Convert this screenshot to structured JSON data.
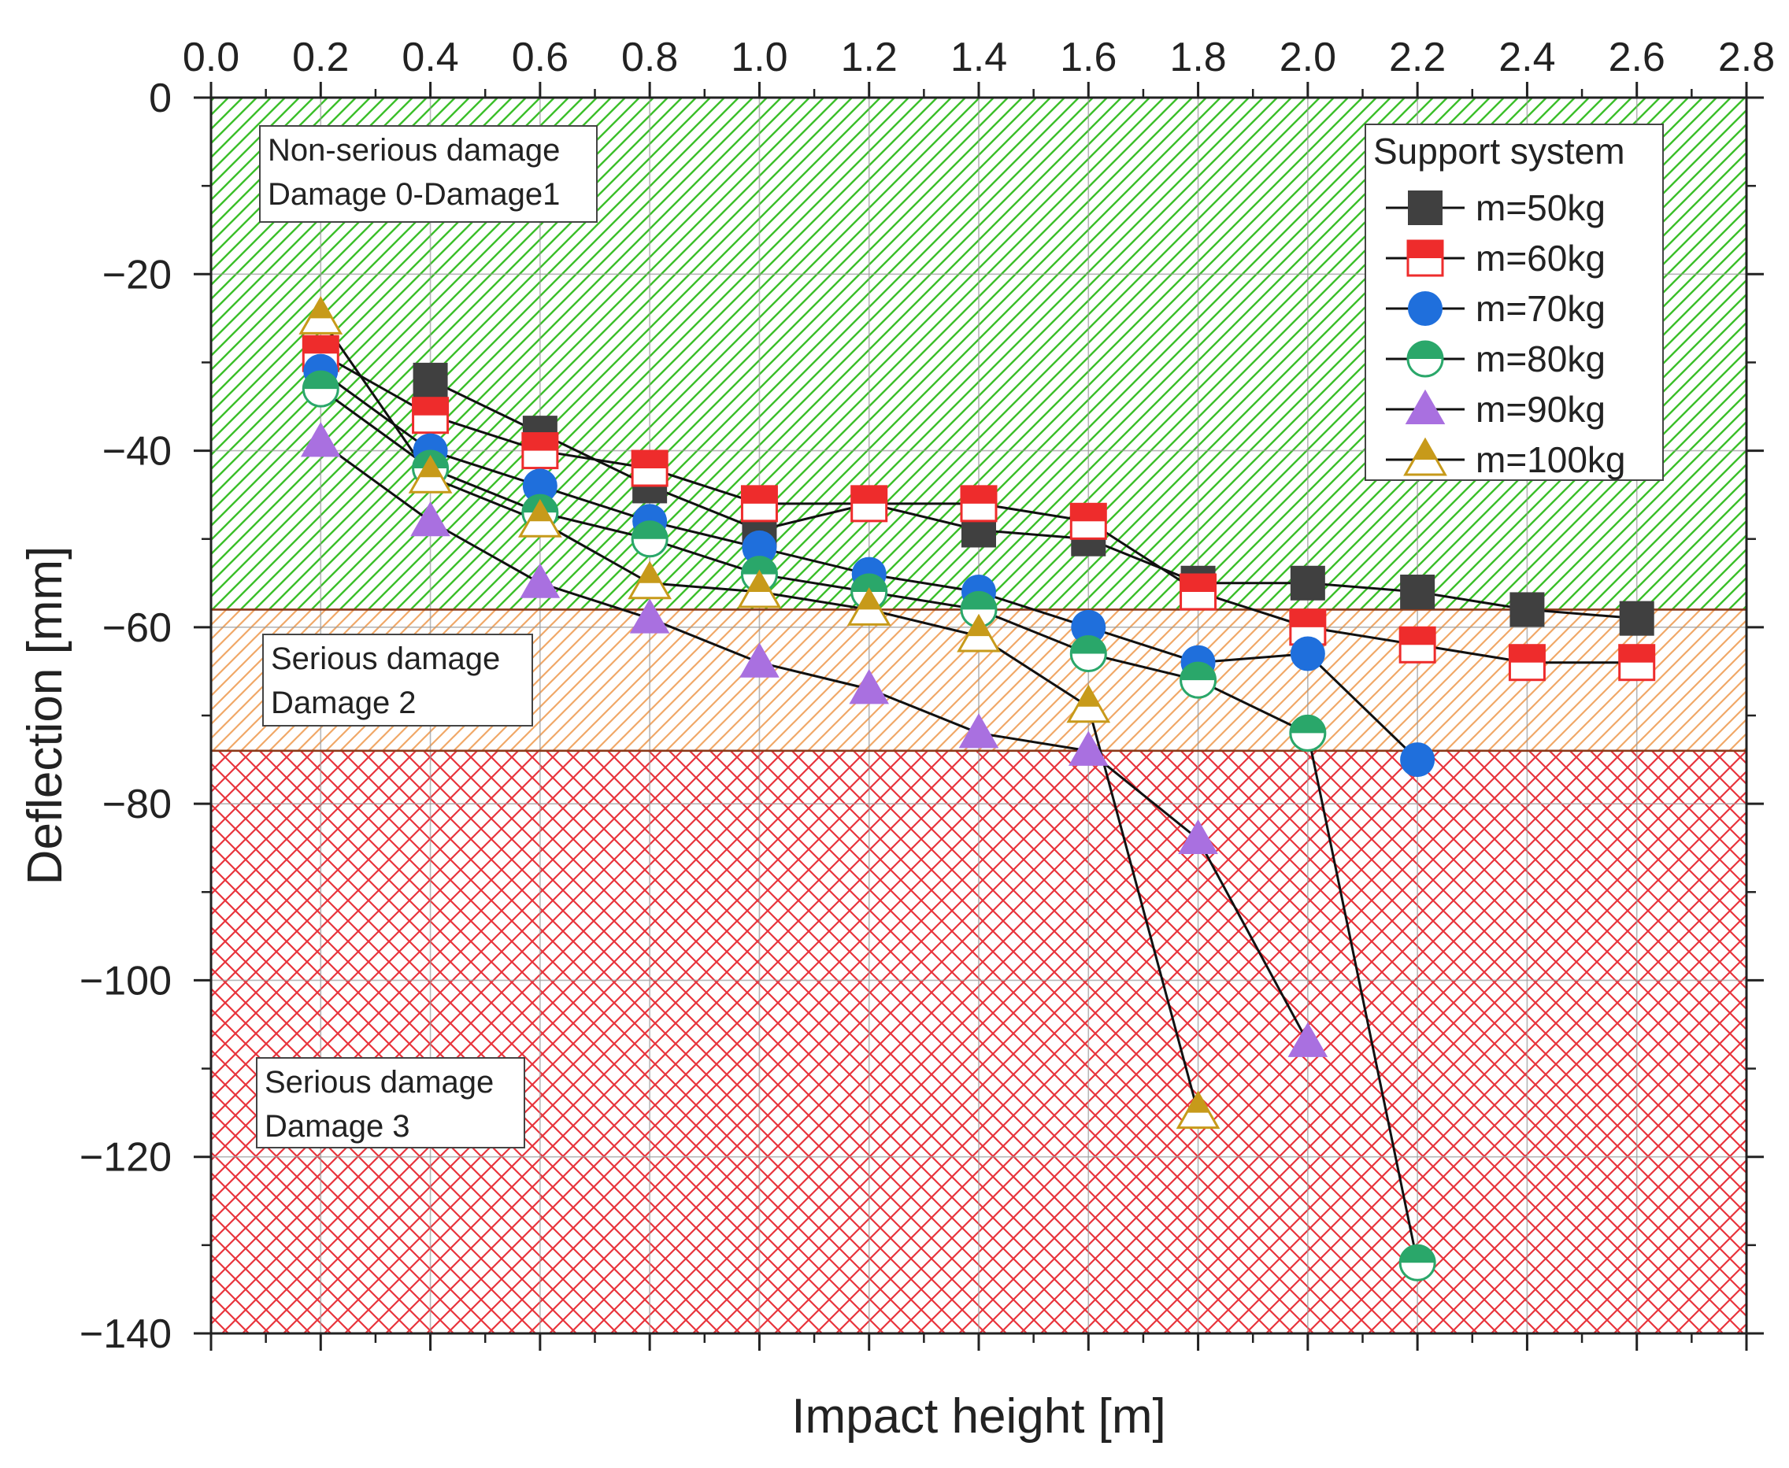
{
  "chart_data": {
    "type": "line",
    "title": "",
    "xlabel": "Impact height [m]",
    "ylabel": "Deflection [mm]",
    "xlim": [
      0.0,
      2.8
    ],
    "ylim": [
      -140,
      0
    ],
    "xticks": [
      "0.0",
      "0.2",
      "0.4",
      "0.6",
      "0.8",
      "1.0",
      "1.2",
      "1.4",
      "1.6",
      "1.8",
      "2.0",
      "2.2",
      "2.4",
      "2.6",
      "2.8"
    ],
    "yticks": [
      "0",
      "-20",
      "-40",
      "-60",
      "-80",
      "-100",
      "-120",
      "-140"
    ],
    "grid": true,
    "legend": {
      "title": "Support system",
      "position": "top-right"
    },
    "zones": [
      {
        "name": "green",
        "from": 0,
        "to": -58,
        "color": "#3bbf2a",
        "labels": [
          "Non-serious damage",
          "Damage 0-Damage1"
        ]
      },
      {
        "name": "orange",
        "from": -58,
        "to": -74,
        "color": "#f0a868",
        "labels": [
          "Serious damage",
          "Damage 2"
        ]
      },
      {
        "name": "red",
        "from": -74,
        "to": -140,
        "color": "#e8343c",
        "labels": [
          "Serious damage",
          "Damage 3"
        ]
      }
    ],
    "series": [
      {
        "name": "m=50kg",
        "marker": "square",
        "color": "#404040",
        "x": [
          0.4,
          0.6,
          0.8,
          1.0,
          1.2,
          1.4,
          1.6,
          1.8,
          2.0,
          2.2,
          2.4,
          2.6
        ],
        "y": [
          -32,
          -38,
          -44,
          -49,
          -46,
          -49,
          -50,
          -55,
          -55,
          -56,
          -58,
          -59
        ]
      },
      {
        "name": "m=60kg",
        "marker": "square-half",
        "color": "#ee2c2c",
        "x": [
          0.2,
          0.4,
          0.6,
          0.8,
          1.0,
          1.2,
          1.4,
          1.6,
          1.8,
          2.0,
          2.2,
          2.4,
          2.6
        ],
        "y": [
          -29,
          -36,
          -40,
          -42,
          -46,
          -46,
          -46,
          -48,
          -56,
          -60,
          -62,
          -64,
          -64
        ]
      },
      {
        "name": "m=70kg",
        "marker": "circle",
        "color": "#1f6fdc",
        "x": [
          0.2,
          0.4,
          0.6,
          0.8,
          1.0,
          1.2,
          1.4,
          1.6,
          1.8,
          2.0,
          2.2
        ],
        "y": [
          -31,
          -40,
          -44,
          -48,
          -51,
          -54,
          -56,
          -60,
          -64,
          -63,
          -75
        ]
      },
      {
        "name": "m=80kg",
        "marker": "circle-half",
        "color": "#2aa76a",
        "x": [
          0.2,
          0.4,
          0.6,
          0.8,
          1.0,
          1.2,
          1.4,
          1.6,
          1.8,
          2.0,
          2.2
        ],
        "y": [
          -33,
          -42,
          -47,
          -50,
          -54,
          -56,
          -58,
          -63,
          -66,
          -72,
          -132
        ]
      },
      {
        "name": "m=90kg",
        "marker": "triangle",
        "color": "#a970e0",
        "x": [
          0.2,
          0.4,
          0.6,
          0.8,
          1.0,
          1.2,
          1.4,
          1.6,
          1.8,
          2.0
        ],
        "y": [
          -39,
          -48,
          -55,
          -59,
          -64,
          -67,
          -72,
          -74,
          -84,
          -107
        ]
      },
      {
        "name": "m=100kg",
        "marker": "triangle-half",
        "color": "#c79a1a",
        "x": [
          0.2,
          0.4,
          0.6,
          0.8,
          1.0,
          1.2,
          1.4,
          1.6,
          1.8
        ],
        "y": [
          -25,
          -43,
          -48,
          -55,
          -56,
          -58,
          -61,
          -69,
          -115
        ]
      }
    ]
  }
}
